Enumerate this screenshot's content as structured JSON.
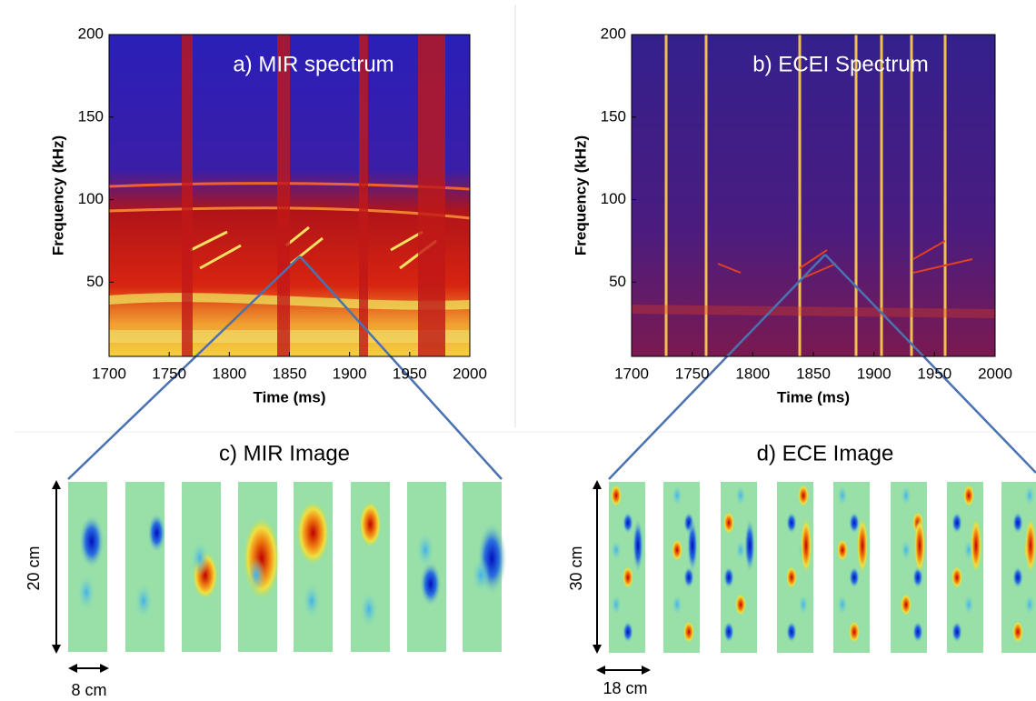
{
  "panels": [
    {
      "title": "a) MIR spectrum",
      "x_label": "Time (ms)",
      "y_label": "Frequency (kHz)",
      "xlim": [
        1700,
        2000
      ],
      "xticks": [
        1700,
        1750,
        1800,
        1850,
        1900,
        1950,
        2000
      ],
      "ylim": [
        5,
        200
      ],
      "yticks": [
        50,
        100,
        150,
        200
      ]
    },
    {
      "title": "b) ECEI Spectrum",
      "x_label": "Time (ms)",
      "y_label": "Frequency (kHz)",
      "xlim": [
        1700,
        2000
      ],
      "xticks": [
        1700,
        1750,
        1800,
        1850,
        1900,
        1950,
        2000
      ],
      "ylim": [
        5,
        200
      ],
      "yticks": [
        50,
        100,
        150,
        200
      ]
    }
  ],
  "images": [
    {
      "title": "c) MIR Image",
      "height_label": "20 cm",
      "width_label": "8 cm"
    },
    {
      "title": "d) ECE Image",
      "height_label": "30 cm",
      "width_label": "18 cm"
    }
  ]
}
